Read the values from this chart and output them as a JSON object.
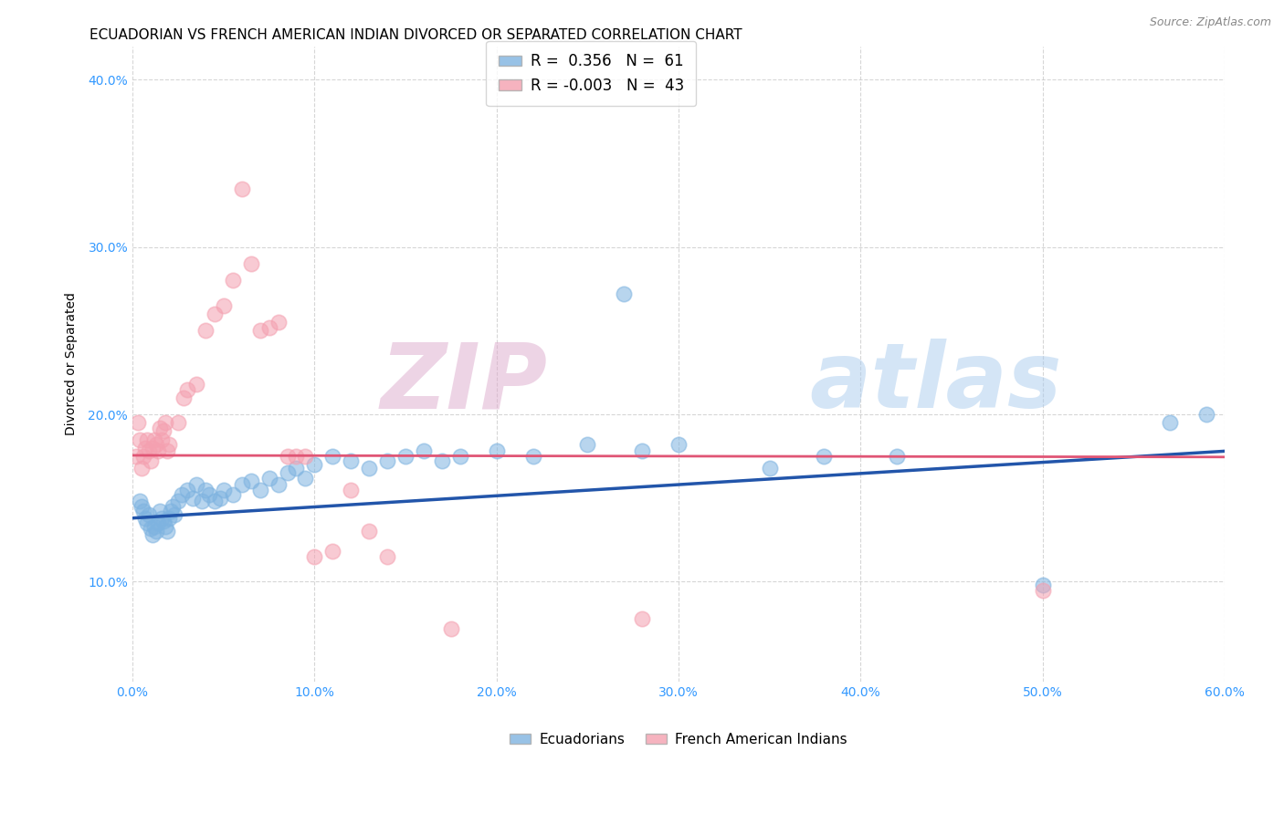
{
  "title": "ECUADORIAN VS FRENCH AMERICAN INDIAN DIVORCED OR SEPARATED CORRELATION CHART",
  "source": "Source: ZipAtlas.com",
  "xlabel_ticks": [
    "0.0%",
    "10.0%",
    "20.0%",
    "30.0%",
    "40.0%",
    "50.0%",
    "60.0%"
  ],
  "xlabel_vals": [
    0.0,
    0.1,
    0.2,
    0.3,
    0.4,
    0.5,
    0.6
  ],
  "ylabel_ticks": [
    "10.0%",
    "20.0%",
    "30.0%",
    "40.0%"
  ],
  "ylabel_vals": [
    0.1,
    0.2,
    0.3,
    0.4
  ],
  "xlim": [
    0.0,
    0.6
  ],
  "ylim": [
    0.04,
    0.42
  ],
  "ylabel": "Divorced or Separated",
  "watermark_zip": "ZIP",
  "watermark_atlas": "atlas",
  "legend_blue_r": "0.356",
  "legend_blue_n": "61",
  "legend_pink_r": "-0.003",
  "legend_pink_n": "43",
  "blue_color": "#7EB3E0",
  "pink_color": "#F4A0B0",
  "line_blue": "#2255AA",
  "line_pink": "#E05575",
  "blue_scatter": [
    [
      0.004,
      0.148
    ],
    [
      0.005,
      0.145
    ],
    [
      0.006,
      0.142
    ],
    [
      0.007,
      0.138
    ],
    [
      0.008,
      0.135
    ],
    [
      0.009,
      0.14
    ],
    [
      0.01,
      0.132
    ],
    [
      0.011,
      0.128
    ],
    [
      0.012,
      0.133
    ],
    [
      0.013,
      0.13
    ],
    [
      0.014,
      0.135
    ],
    [
      0.015,
      0.142
    ],
    [
      0.016,
      0.138
    ],
    [
      0.017,
      0.136
    ],
    [
      0.018,
      0.133
    ],
    [
      0.019,
      0.13
    ],
    [
      0.02,
      0.138
    ],
    [
      0.021,
      0.142
    ],
    [
      0.022,
      0.145
    ],
    [
      0.023,
      0.14
    ],
    [
      0.025,
      0.148
    ],
    [
      0.027,
      0.152
    ],
    [
      0.03,
      0.155
    ],
    [
      0.033,
      0.15
    ],
    [
      0.035,
      0.158
    ],
    [
      0.038,
      0.148
    ],
    [
      0.04,
      0.155
    ],
    [
      0.042,
      0.152
    ],
    [
      0.045,
      0.148
    ],
    [
      0.048,
      0.15
    ],
    [
      0.05,
      0.155
    ],
    [
      0.055,
      0.152
    ],
    [
      0.06,
      0.158
    ],
    [
      0.065,
      0.16
    ],
    [
      0.07,
      0.155
    ],
    [
      0.075,
      0.162
    ],
    [
      0.08,
      0.158
    ],
    [
      0.085,
      0.165
    ],
    [
      0.09,
      0.168
    ],
    [
      0.095,
      0.162
    ],
    [
      0.1,
      0.17
    ],
    [
      0.11,
      0.175
    ],
    [
      0.12,
      0.172
    ],
    [
      0.13,
      0.168
    ],
    [
      0.14,
      0.172
    ],
    [
      0.15,
      0.175
    ],
    [
      0.16,
      0.178
    ],
    [
      0.17,
      0.172
    ],
    [
      0.18,
      0.175
    ],
    [
      0.2,
      0.178
    ],
    [
      0.22,
      0.175
    ],
    [
      0.25,
      0.182
    ],
    [
      0.27,
      0.272
    ],
    [
      0.28,
      0.178
    ],
    [
      0.3,
      0.182
    ],
    [
      0.35,
      0.168
    ],
    [
      0.38,
      0.175
    ],
    [
      0.42,
      0.175
    ],
    [
      0.5,
      0.098
    ],
    [
      0.57,
      0.195
    ],
    [
      0.59,
      0.2
    ]
  ],
  "pink_scatter": [
    [
      0.002,
      0.175
    ],
    [
      0.003,
      0.195
    ],
    [
      0.004,
      0.185
    ],
    [
      0.005,
      0.168
    ],
    [
      0.006,
      0.175
    ],
    [
      0.007,
      0.18
    ],
    [
      0.008,
      0.185
    ],
    [
      0.009,
      0.178
    ],
    [
      0.01,
      0.172
    ],
    [
      0.011,
      0.18
    ],
    [
      0.012,
      0.185
    ],
    [
      0.013,
      0.182
    ],
    [
      0.014,
      0.178
    ],
    [
      0.015,
      0.192
    ],
    [
      0.016,
      0.185
    ],
    [
      0.017,
      0.19
    ],
    [
      0.018,
      0.195
    ],
    [
      0.019,
      0.178
    ],
    [
      0.02,
      0.182
    ],
    [
      0.025,
      0.195
    ],
    [
      0.028,
      0.21
    ],
    [
      0.03,
      0.215
    ],
    [
      0.035,
      0.218
    ],
    [
      0.04,
      0.25
    ],
    [
      0.045,
      0.26
    ],
    [
      0.05,
      0.265
    ],
    [
      0.055,
      0.28
    ],
    [
      0.06,
      0.335
    ],
    [
      0.065,
      0.29
    ],
    [
      0.07,
      0.25
    ],
    [
      0.075,
      0.252
    ],
    [
      0.08,
      0.255
    ],
    [
      0.085,
      0.175
    ],
    [
      0.09,
      0.175
    ],
    [
      0.095,
      0.175
    ],
    [
      0.1,
      0.115
    ],
    [
      0.11,
      0.118
    ],
    [
      0.12,
      0.155
    ],
    [
      0.13,
      0.13
    ],
    [
      0.14,
      0.115
    ],
    [
      0.175,
      0.072
    ],
    [
      0.28,
      0.078
    ],
    [
      0.5,
      0.095
    ]
  ],
  "grid_color": "#CCCCCC",
  "background_color": "#FFFFFF",
  "title_fontsize": 11,
  "axis_label_fontsize": 10,
  "tick_fontsize": 10,
  "source_fontsize": 9
}
